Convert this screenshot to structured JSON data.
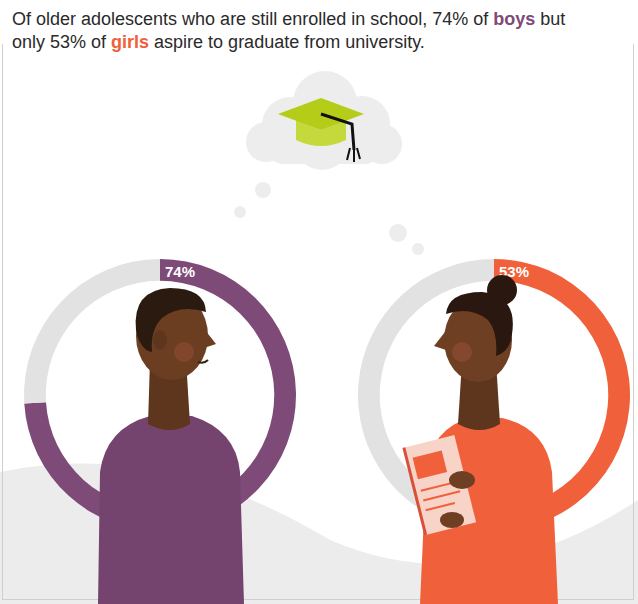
{
  "chart_data": {
    "type": "pie",
    "title": "Of older adolescents who are still enrolled in school, 74% of boys but only 53% of girls aspire to graduate from university.",
    "ylim": [
      0,
      100
    ],
    "data_labels": true,
    "series": [
      {
        "name": "boys",
        "color": "#7e4a78",
        "values": [
          74
        ],
        "value_labels": [
          "74%"
        ]
      },
      {
        "name": "girls",
        "color": "#f0603a",
        "values": [
          53
        ],
        "value_labels": [
          "53%"
        ]
      }
    ]
  }
}
